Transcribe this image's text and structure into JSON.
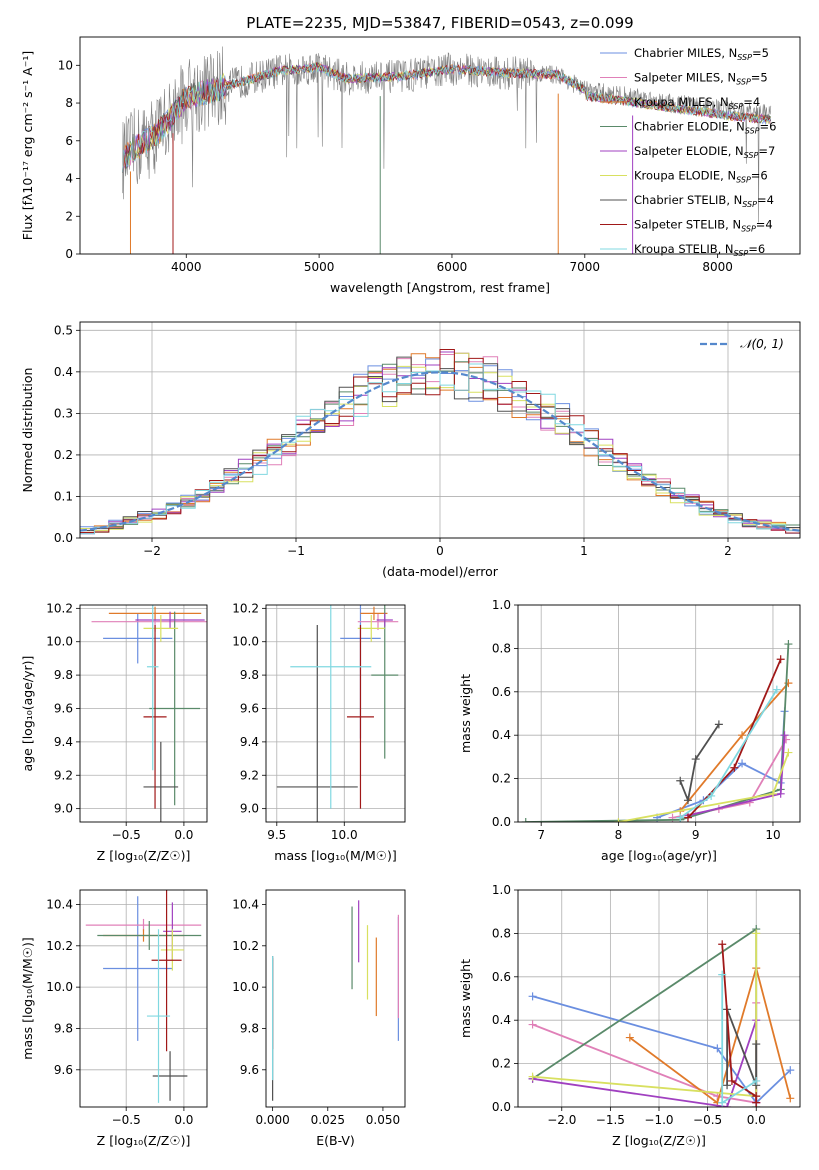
{
  "figure": {
    "title": "PLATE=2235, MJD=53847, FIBERID=0543, z=0.099"
  },
  "series_colors": [
    "#6b8fe0",
    "#e080b8",
    "#e07a2a",
    "#5a8a6a",
    "#a040c0",
    "#d8e060",
    "#505050",
    "#a01818",
    "#80d8e0"
  ],
  "chart_data": [
    {
      "id": "spectrum",
      "type": "line",
      "xlabel": "wavelength [Angstrom, rest frame]",
      "ylabel": "Flux [fλ10⁻¹⁷ erg cm⁻² s⁻¹ A⁻¹]",
      "xlim": [
        3200,
        8620
      ],
      "ylim": [
        0,
        11.5
      ],
      "xticks": [
        4000,
        5000,
        6000,
        7000,
        8000
      ],
      "yticks": [
        0,
        2,
        4,
        6,
        8,
        10
      ],
      "grid": false,
      "legend_position": "right",
      "legend": [
        "Chabrier MILES, N_SSP=5",
        "Salpeter MILES, N_SSP=5",
        "Kroupa MILES, N_SSP=4",
        "Chabrier ELODIE, N_SSP=6",
        "Salpeter ELODIE, N_SSP=7",
        "Kroupa ELODIE, N_SSP=6",
        "Chabrier STELIB, N_SSP=4",
        "Salpeter STELIB, N_SSP=4",
        "Kroupa STELIB, N_SSP=6"
      ],
      "continuum_knots": {
        "x": [
          3520,
          3600,
          3800,
          4000,
          4300,
          4700,
          5000,
          5200,
          5600,
          6000,
          6400,
          6800,
          7000,
          7400,
          8000,
          8400
        ],
        "y": [
          5.0,
          5.5,
          6.5,
          8.3,
          8.9,
          9.7,
          9.9,
          9.3,
          9.4,
          9.8,
          9.6,
          9.5,
          8.7,
          8.3,
          7.7,
          7.4
        ]
      }
    },
    {
      "id": "residuals",
      "type": "histogram",
      "xlabel": "(data-model)/error",
      "ylabel": "Normed distribution",
      "xlim": [
        -2.5,
        2.5
      ],
      "ylim": [
        0,
        0.52
      ],
      "xticks": [
        -2,
        -1,
        0,
        1,
        2
      ],
      "yticks": [
        0.0,
        0.1,
        0.2,
        0.3,
        0.4,
        0.5
      ],
      "grid": true,
      "legend_position": "top-right",
      "legend": [
        "𝒩(0, 1)"
      ],
      "bin_width": 0.1
    },
    {
      "id": "age_vs_z",
      "type": "errorbar",
      "xlabel": "Z [log₁₀(Z/Z☉)]",
      "ylabel": "age  [log₁₀(age/yr)]",
      "xlim": [
        -0.9,
        0.2
      ],
      "ylim": [
        8.92,
        10.22
      ],
      "xticks": [
        -0.5,
        0.0
      ],
      "yticks": [
        9.0,
        9.2,
        9.4,
        9.6,
        9.8,
        10.0,
        10.2
      ],
      "grid": true,
      "points": [
        {
          "x": -0.4,
          "xerr": 0.3,
          "y": 10.02,
          "yerr": 0.15
        },
        {
          "x": -0.25,
          "xerr": 0.55,
          "y": 10.12,
          "yerr": 0.06
        },
        {
          "x": -0.25,
          "xerr": 0.4,
          "y": 10.17,
          "yerr": 0.04
        },
        {
          "x": -0.08,
          "xerr": 0.22,
          "y": 9.6,
          "yerr": 0.58
        },
        {
          "x": -0.12,
          "xerr": 0.3,
          "y": 10.13,
          "yerr": 0.05
        },
        {
          "x": -0.2,
          "xerr": 0.15,
          "y": 10.08,
          "yerr": 0.08
        },
        {
          "x": -0.2,
          "xerr": 0.15,
          "y": 9.13,
          "yerr": 0.27
        },
        {
          "x": -0.25,
          "xerr": 0.1,
          "y": 9.55,
          "yerr": 0.55
        },
        {
          "x": -0.27,
          "xerr": 0.05,
          "y": 9.85,
          "yerr": 0.62
        }
      ]
    },
    {
      "id": "age_vs_mass",
      "type": "errorbar",
      "xlabel": "mass [log₁₀(M/M☉)]",
      "ylabel": "",
      "xlim": [
        9.42,
        10.45
      ],
      "ylim": [
        8.92,
        10.22
      ],
      "xticks": [
        9.5,
        10.0
      ],
      "yticks": [
        9.0,
        9.2,
        9.4,
        9.6,
        9.8,
        10.0,
        10.2
      ],
      "grid": true,
      "points": [
        {
          "x": 10.12,
          "xerr": 0.15,
          "y": 10.02,
          "yerr": 0.6
        },
        {
          "x": 10.25,
          "xerr": 0.15,
          "y": 10.12,
          "yerr": 0.05
        },
        {
          "x": 10.22,
          "xerr": 0.1,
          "y": 10.17,
          "yerr": 0.04
        },
        {
          "x": 10.3,
          "xerr": 0.1,
          "y": 9.8,
          "yerr": 0.5
        },
        {
          "x": 10.3,
          "xerr": 0.06,
          "y": 10.13,
          "yerr": 0.04
        },
        {
          "x": 10.2,
          "xerr": 0.1,
          "y": 10.08,
          "yerr": 0.08
        },
        {
          "x": 9.8,
          "xerr": 0.3,
          "y": 9.13,
          "yerr": 0.97
        },
        {
          "x": 10.12,
          "xerr": 0.1,
          "y": 9.55,
          "yerr": 0.55
        },
        {
          "x": 9.9,
          "xerr": 0.3,
          "y": 9.85,
          "yerr": 0.85
        }
      ]
    },
    {
      "id": "weight_vs_age",
      "type": "line",
      "xlabel": "age  [log₁₀(age/yr)]",
      "ylabel": "mass weight",
      "xlim": [
        6.7,
        10.35
      ],
      "ylim": [
        0,
        1.0
      ],
      "xticks": [
        7,
        8,
        9,
        10
      ],
      "yticks": [
        0.0,
        0.2,
        0.4,
        0.6,
        0.8,
        1.0
      ],
      "grid": true,
      "series": [
        {
          "x": [
            8.5,
            9.1,
            9.6,
            10.1,
            10.15
          ],
          "y": [
            0.02,
            0.1,
            0.27,
            0.18,
            0.51
          ]
        },
        {
          "x": [
            8.7,
            9.3,
            9.7,
            10.17
          ],
          "y": [
            0.02,
            0.06,
            0.09,
            0.38
          ]
        },
        {
          "x": [
            8.8,
            9.6,
            10.2
          ],
          "y": [
            0.05,
            0.4,
            0.64
          ]
        },
        {
          "x": [
            6.8,
            8.8,
            10.1,
            10.2
          ],
          "y": [
            0.0,
            0.01,
            0.15,
            0.82
          ]
        },
        {
          "x": [
            8.9,
            10.1,
            10.15
          ],
          "y": [
            0.03,
            0.13,
            0.4
          ]
        },
        {
          "x": [
            8.0,
            10.0,
            10.2
          ],
          "y": [
            0.0,
            0.13,
            0.32
          ]
        },
        {
          "x": [
            8.8,
            8.9,
            9.0,
            9.3
          ],
          "y": [
            0.19,
            0.1,
            0.29,
            0.45
          ]
        },
        {
          "x": [
            8.9,
            9.5,
            10.1
          ],
          "y": [
            0.02,
            0.25,
            0.75
          ]
        },
        {
          "x": [
            8.8,
            9.2,
            10.05
          ],
          "y": [
            0.02,
            0.12,
            0.61
          ]
        }
      ]
    },
    {
      "id": "mass_vs_z",
      "type": "errorbar",
      "xlabel": "Z [log₁₀(Z/Z☉)]",
      "ylabel": "mass [log₁₀(M/M☉)]",
      "xlim": [
        -0.9,
        0.2
      ],
      "ylim": [
        9.42,
        10.47
      ],
      "xticks": [
        -0.5,
        0.0
      ],
      "yticks": [
        9.6,
        9.8,
        10.0,
        10.2,
        10.4
      ],
      "grid": true,
      "points": [
        {
          "x": -0.4,
          "xerr": 0.3,
          "y": 10.09,
          "yerr": 0.35
        },
        {
          "x": -0.35,
          "xerr": 0.5,
          "y": 10.3,
          "yerr": 0.03
        },
        {
          "x": -0.35,
          "xerr": 0.35,
          "y": 10.25,
          "yerr": 0.03
        },
        {
          "x": -0.3,
          "xerr": 0.45,
          "y": 10.25,
          "yerr": 0.07
        },
        {
          "x": -0.1,
          "xerr": 0.08,
          "y": 10.27,
          "yerr": 0.14
        },
        {
          "x": -0.1,
          "xerr": 0.1,
          "y": 10.18,
          "yerr": 0.1
        },
        {
          "x": -0.12,
          "xerr": 0.15,
          "y": 9.57,
          "yerr": 0.12
        },
        {
          "x": -0.15,
          "xerr": 0.13,
          "y": 10.13,
          "yerr": 0.44
        },
        {
          "x": -0.22,
          "xerr": 0.1,
          "y": 9.86,
          "yerr": 0.42
        }
      ]
    },
    {
      "id": "mass_vs_ebv",
      "type": "errorbar",
      "xlabel": "E(B-V)",
      "ylabel": "",
      "xlim": [
        -0.003,
        0.06
      ],
      "ylim": [
        9.42,
        10.47
      ],
      "xticks": [
        0.0,
        0.025,
        0.05
      ],
      "yticks": [
        9.6,
        9.8,
        10.0,
        10.2,
        10.4
      ],
      "grid": false,
      "points": [
        {
          "x": 0.057,
          "xerr": 0,
          "y": 10.04,
          "yerr": 0.3
        },
        {
          "x": 0.057,
          "xerr": 0,
          "y": 10.1,
          "yerr": 0.25
        },
        {
          "x": 0.047,
          "xerr": 0,
          "y": 10.05,
          "yerr": 0.19
        },
        {
          "x": 0.036,
          "xerr": 0,
          "y": 10.19,
          "yerr": 0.2
        },
        {
          "x": 0.039,
          "xerr": 0,
          "y": 10.27,
          "yerr": 0.15
        },
        {
          "x": 0.043,
          "xerr": 0,
          "y": 10.12,
          "yerr": 0.18
        },
        {
          "x": 0.0,
          "xerr": 0,
          "y": 9.8,
          "yerr": 0.35
        },
        {
          "x": 0.0,
          "xerr": 0,
          "y": 9.92,
          "yerr": 0.22
        },
        {
          "x": 0.0,
          "xerr": 0,
          "y": 9.85,
          "yerr": 0.3
        }
      ]
    },
    {
      "id": "weight_vs_z",
      "type": "line",
      "xlabel": "Z [log₁₀(Z/Z☉)]",
      "ylabel": "mass weight",
      "xlim": [
        -2.45,
        0.45
      ],
      "ylim": [
        0,
        1.0
      ],
      "xticks": [
        -2.0,
        -1.5,
        -1.0,
        -0.5,
        0.0
      ],
      "yticks": [
        0.0,
        0.2,
        0.4,
        0.6,
        0.8,
        1.0
      ],
      "grid": true,
      "series": [
        {
          "x": [
            -2.3,
            -0.4,
            0.0,
            0.35
          ],
          "y": [
            0.51,
            0.27,
            0.02,
            0.17
          ]
        },
        {
          "x": [
            -2.3,
            -0.4,
            0.0,
            0.0
          ],
          "y": [
            0.38,
            0.05,
            0.02,
            0.48
          ]
        },
        {
          "x": [
            -1.3,
            -0.4,
            0.0,
            0.35
          ],
          "y": [
            0.32,
            0.02,
            0.64,
            0.04
          ]
        },
        {
          "x": [
            -2.3,
            0.0,
            0.0
          ],
          "y": [
            0.13,
            0.82,
            0.0
          ]
        },
        {
          "x": [
            -2.3,
            -0.3,
            0.0,
            0.0
          ],
          "y": [
            0.13,
            0.0,
            0.4,
            0.02
          ]
        },
        {
          "x": [
            -2.3,
            0.0,
            0.0
          ],
          "y": [
            0.14,
            0.05,
            0.8
          ]
        },
        {
          "x": [
            -0.3,
            -0.3,
            0.0,
            0.0
          ],
          "y": [
            0.1,
            0.45,
            0.1,
            0.29
          ]
        },
        {
          "x": [
            -0.35,
            -0.25,
            0.0,
            0.0
          ],
          "y": [
            0.75,
            0.12,
            0.05,
            0.02
          ]
        },
        {
          "x": [
            -0.35,
            -0.35,
            0.0
          ],
          "y": [
            0.61,
            0.02,
            0.12
          ]
        }
      ]
    }
  ]
}
